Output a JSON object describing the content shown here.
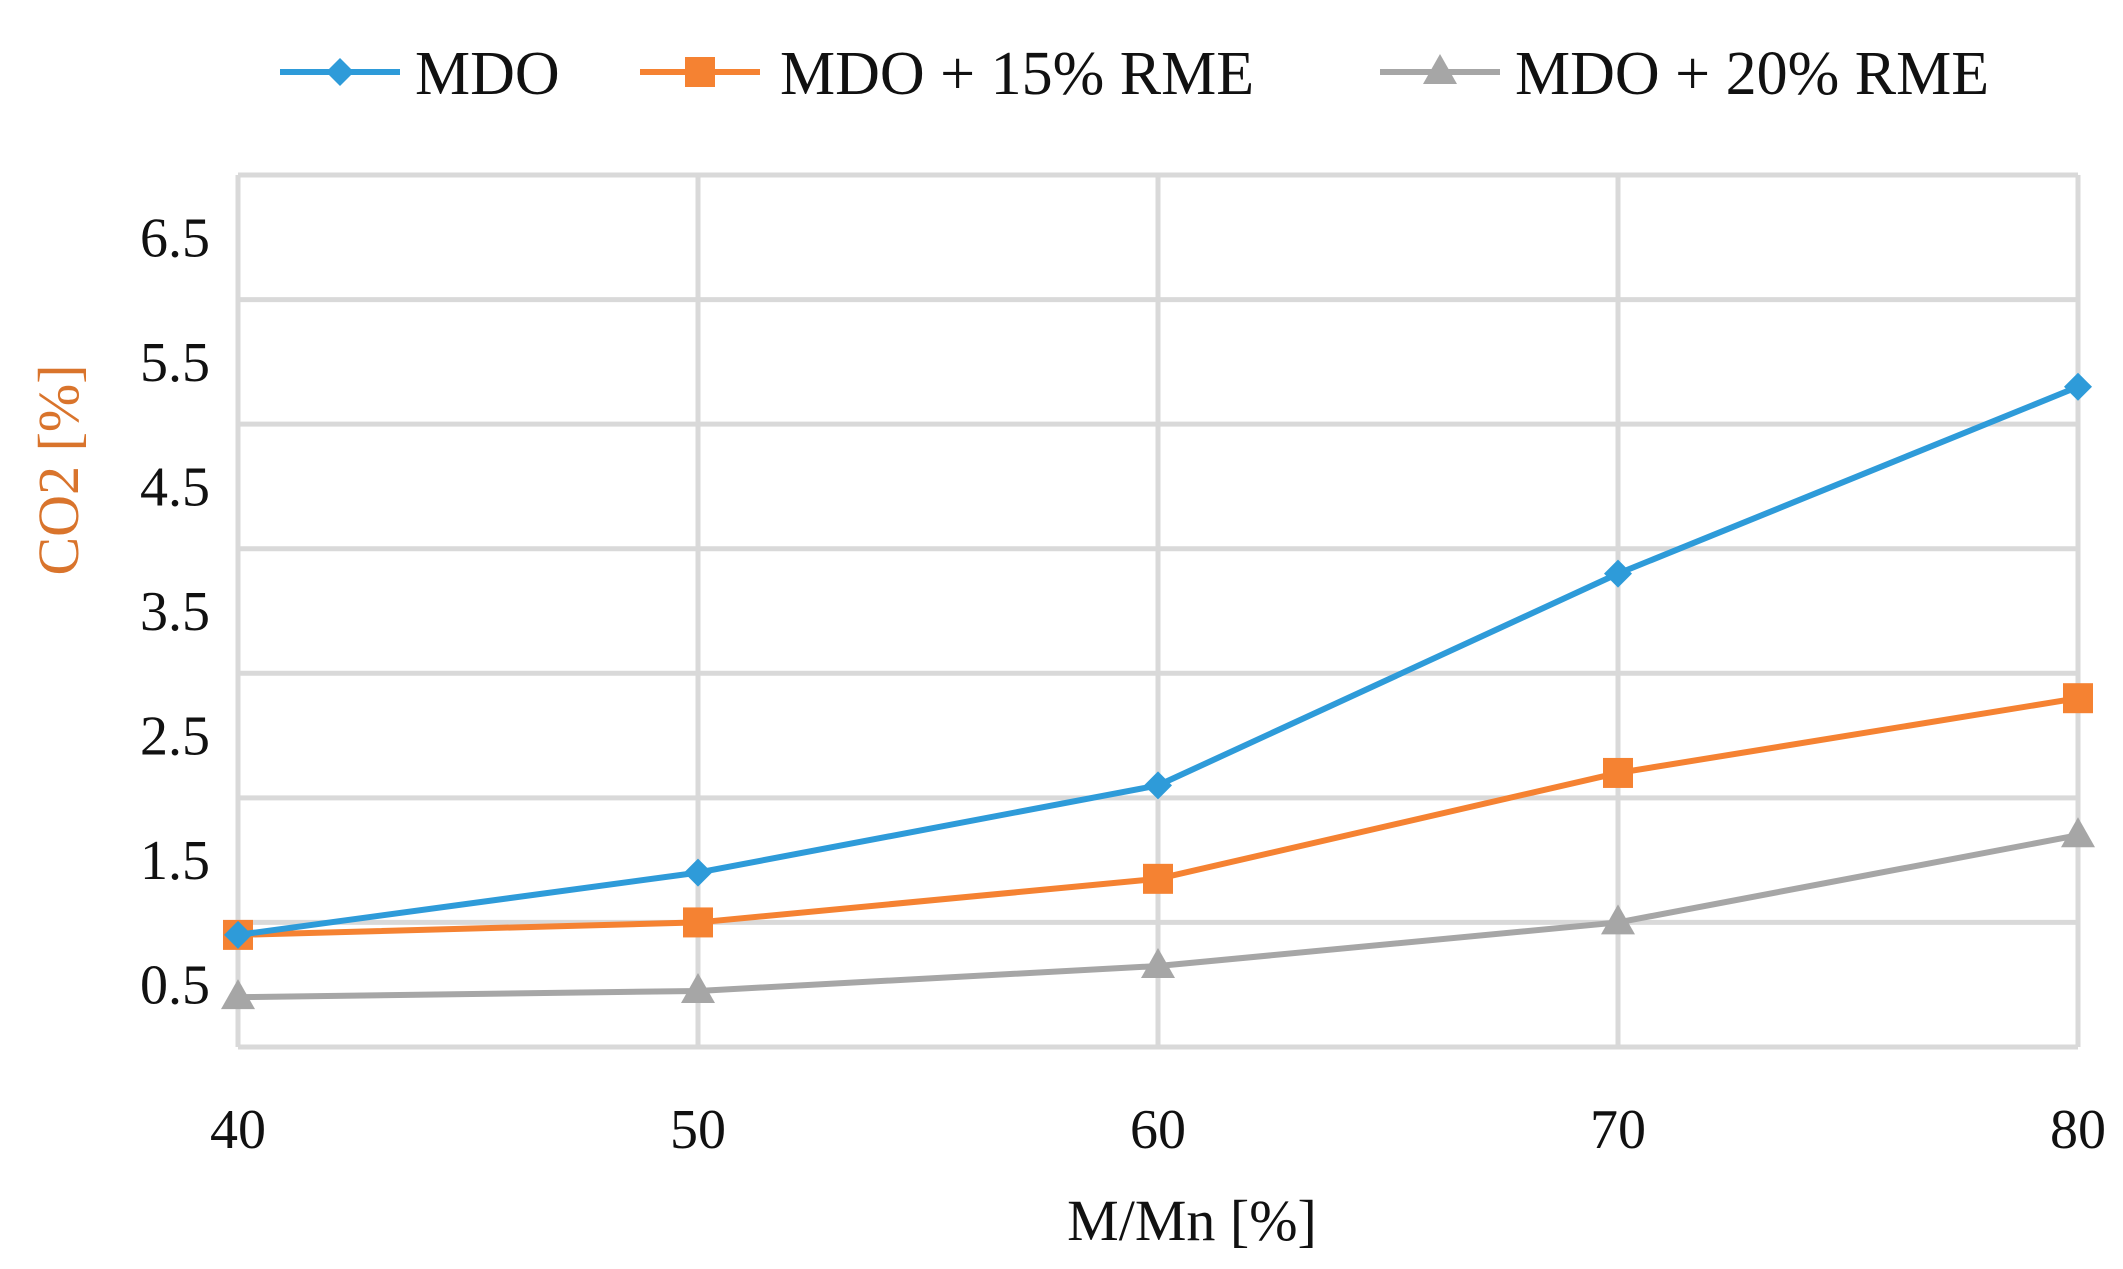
{
  "chart_data": {
    "type": "line",
    "title": "",
    "xlabel": "M/Mn [%]",
    "ylabel": "CO2 [%]",
    "x": [
      40,
      50,
      60,
      70,
      80
    ],
    "x_ticks": [
      "40",
      "50",
      "60",
      "70",
      "80"
    ],
    "y_ticks": [
      "0.5",
      "1.5",
      "2.5",
      "3.5",
      "4.5",
      "5.5",
      "6.5"
    ],
    "y_tick_values": [
      0.5,
      1.5,
      2.5,
      3.5,
      4.5,
      5.5,
      6.5
    ],
    "y_grid_values": [
      0,
      1,
      2,
      3,
      4,
      5,
      6,
      7
    ],
    "ylim": [
      0,
      7
    ],
    "grid": true,
    "legend_position": "top",
    "series": [
      {
        "name": "MDO",
        "color": "#2e9bd9",
        "marker": "diamond",
        "values": [
          0.9,
          1.4,
          2.1,
          3.8,
          5.3
        ]
      },
      {
        "name": "MDO + 15% RME",
        "color": "#f58232",
        "marker": "square",
        "values": [
          0.9,
          1.0,
          1.35,
          2.2,
          2.8
        ]
      },
      {
        "name": "MDO + 20% RME",
        "color": "#a6a6a6",
        "marker": "triangle",
        "values": [
          0.4,
          0.45,
          0.65,
          1.0,
          1.7
        ]
      }
    ],
    "colors": {
      "axis_title": "#d9742c",
      "x_axis_title": "#111111",
      "grid": "#d9d9d9"
    }
  }
}
